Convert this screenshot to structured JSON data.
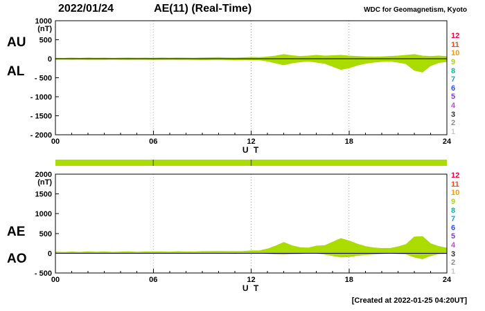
{
  "header": {
    "date": "2022/01/24",
    "title": "AE(11) (Real-Time)",
    "source": "WDC for Geomagnetism, Kyoto"
  },
  "footer": {
    "created": "[Created at 2022-01-25 04:20UT]"
  },
  "colors": {
    "trace": "#aadc00",
    "axis": "#000000",
    "grid": "#aaaaaa",
    "background": "#ffffff"
  },
  "station_scale": [
    {
      "n": "12",
      "color": "#f5003c"
    },
    {
      "n": "11",
      "color": "#ff4500"
    },
    {
      "n": "10",
      "color": "#ff9800"
    },
    {
      "n": "9",
      "color": "#aadc00"
    },
    {
      "n": "8",
      "color": "#00c0a8"
    },
    {
      "n": "7",
      "color": "#00a8e8"
    },
    {
      "n": "6",
      "color": "#2f4fff"
    },
    {
      "n": "5",
      "color": "#7a3bd6"
    },
    {
      "n": "4",
      "color": "#d044d0"
    },
    {
      "n": "3",
      "color": "#303030"
    },
    {
      "n": "2",
      "color": "#8a8a8a"
    },
    {
      "n": "1",
      "color": "#c8c8c8"
    }
  ],
  "station_bar": {
    "color": "#aadc00",
    "tick_hours": [
      6,
      12
    ]
  },
  "chart_data": [
    {
      "type": "area",
      "title": "AU / AL auroral electrojet indices",
      "left_labels": [
        "AU",
        "AL"
      ],
      "unit": "(nT)",
      "xlabel": "U T",
      "ylim": [
        -2000,
        1000
      ],
      "xlim": [
        0,
        24
      ],
      "x_start": 0,
      "x_step_hours": 0.5,
      "yticks": [
        {
          "v": 1000,
          "label": "1000"
        },
        {
          "v": 500,
          "label": "500"
        },
        {
          "v": 0,
          "label": "0"
        },
        {
          "v": -500,
          "label": "- 500"
        },
        {
          "v": -1000,
          "label": "- 1000"
        },
        {
          "v": -1500,
          "label": "- 1500"
        },
        {
          "v": -2000,
          "label": "- 2000"
        }
      ],
      "xticks": [
        {
          "v": 0,
          "label": "00"
        },
        {
          "v": 6,
          "label": "06"
        },
        {
          "v": 12,
          "label": "12"
        },
        {
          "v": 18,
          "label": "18"
        },
        {
          "v": 24,
          "label": "24"
        }
      ],
      "grid_x": [
        6,
        12,
        18
      ],
      "series": [
        {
          "name": "AU",
          "values": [
            15,
            10,
            18,
            12,
            20,
            14,
            18,
            12,
            16,
            20,
            14,
            18,
            15,
            20,
            16,
            22,
            18,
            14,
            20,
            25,
            30,
            22,
            18,
            25,
            35,
            30,
            45,
            70,
            110,
            80,
            60,
            70,
            90,
            70,
            80,
            90,
            70,
            60,
            50,
            45,
            50,
            60,
            70,
            90,
            110,
            70,
            60,
            70,
            55
          ]
        },
        {
          "name": "AL",
          "values": [
            -15,
            -10,
            -14,
            -10,
            -16,
            -12,
            -15,
            -10,
            -14,
            -16,
            -12,
            -15,
            -18,
            -14,
            -12,
            -16,
            -14,
            -18,
            -22,
            -18,
            -15,
            -20,
            -25,
            -20,
            -25,
            -30,
            -60,
            -110,
            -160,
            -110,
            -80,
            -60,
            -90,
            -120,
            -200,
            -280,
            -240,
            -170,
            -120,
            -90,
            -70,
            -60,
            -90,
            -130,
            -300,
            -350,
            -180,
            -100,
            -70
          ]
        }
      ]
    },
    {
      "type": "area",
      "title": "AE / AO auroral electrojet indices",
      "left_labels": [
        "AE",
        "AO"
      ],
      "unit": "(nT)",
      "xlabel": "U T",
      "ylim": [
        -500,
        2000
      ],
      "xlim": [
        0,
        24
      ],
      "x_start": 0,
      "x_step_hours": 0.5,
      "yticks": [
        {
          "v": 2000,
          "label": "2000"
        },
        {
          "v": 1500,
          "label": "1500"
        },
        {
          "v": 1000,
          "label": "1000"
        },
        {
          "v": 500,
          "label": "500"
        },
        {
          "v": 0,
          "label": "0"
        },
        {
          "v": -500,
          "label": "- 500"
        }
      ],
      "xticks": [
        {
          "v": 0,
          "label": "00"
        },
        {
          "v": 6,
          "label": "06"
        },
        {
          "v": 12,
          "label": "12"
        },
        {
          "v": 18,
          "label": "18"
        },
        {
          "v": 24,
          "label": "24"
        }
      ],
      "grid_x": [
        6,
        12,
        18
      ],
      "series": [
        {
          "name": "AE",
          "values": [
            30,
            20,
            32,
            22,
            36,
            26,
            33,
            22,
            30,
            36,
            26,
            33,
            33,
            34,
            28,
            38,
            32,
            32,
            42,
            43,
            45,
            42,
            43,
            45,
            60,
            60,
            105,
            180,
            270,
            190,
            140,
            130,
            180,
            190,
            280,
            370,
            310,
            230,
            170,
            135,
            120,
            120,
            160,
            220,
            410,
            420,
            240,
            170,
            125
          ]
        },
        {
          "name": "AO",
          "values": [
            0,
            0,
            2,
            1,
            2,
            1,
            2,
            1,
            1,
            2,
            1,
            2,
            -2,
            3,
            2,
            3,
            2,
            -2,
            -1,
            4,
            8,
            1,
            -4,
            3,
            5,
            0,
            -8,
            -20,
            -25,
            -15,
            -10,
            5,
            0,
            -25,
            -60,
            -95,
            -85,
            -55,
            -35,
            -22,
            -10,
            0,
            -10,
            -20,
            -95,
            -140,
            -60,
            -15,
            -8
          ]
        }
      ]
    }
  ]
}
